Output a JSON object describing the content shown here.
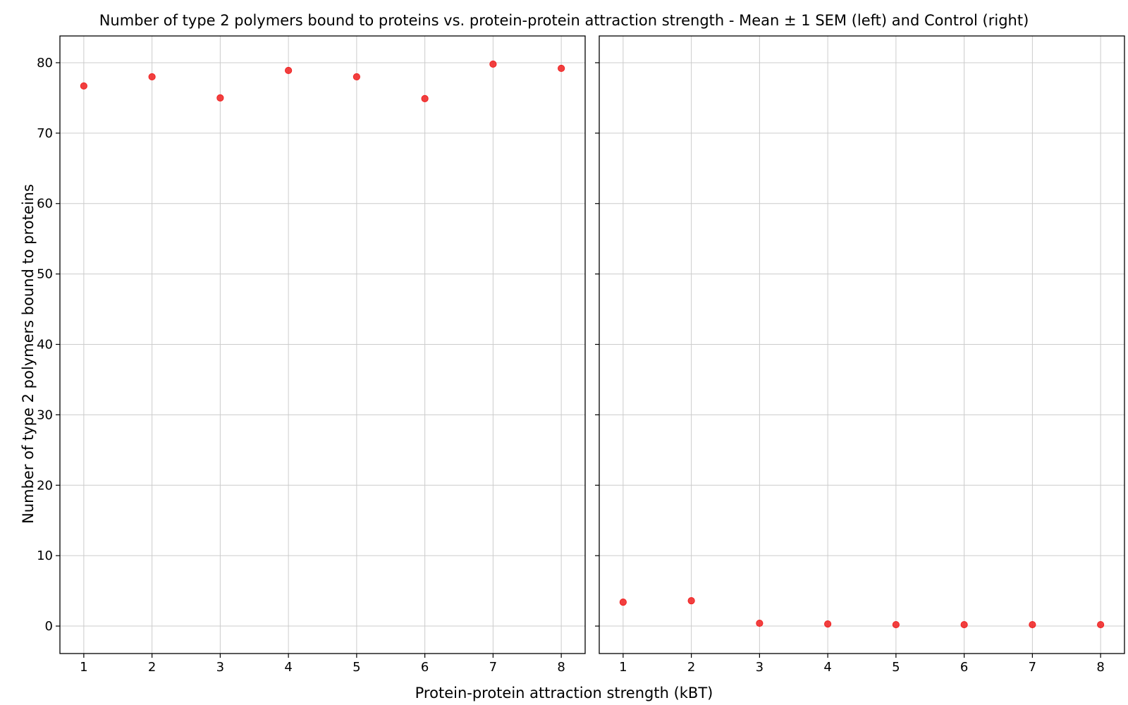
{
  "chart_data": {
    "type": "scatter",
    "title": "Number of type 2 polymers bound to proteins vs. protein-protein attraction strength - Mean ± 1 SEM (left) and Control (right)",
    "xlabel": "Protein-protein attraction strength (kBT)",
    "ylabel": "Number of type 2 polymers bound to proteins",
    "xlim": [
      0.65,
      8.35
    ],
    "ylim": [
      -3.9,
      83.8
    ],
    "x_ticks": [
      "1",
      "2",
      "3",
      "4",
      "5",
      "6",
      "7",
      "8"
    ],
    "y_ticks": [
      "0",
      "10",
      "20",
      "30",
      "40",
      "50",
      "60",
      "70",
      "80"
    ],
    "grid": true,
    "sharey": true,
    "marker_color": "#f02020",
    "panels": [
      {
        "series": [
          {
            "x": [
              1,
              2,
              3,
              4,
              5,
              6,
              7,
              8
            ],
            "y": [
              76.7,
              78.0,
              75.0,
              78.9,
              78.0,
              74.9,
              79.8,
              79.2
            ]
          }
        ]
      },
      {
        "series": [
          {
            "x": [
              1,
              2,
              3,
              4,
              5,
              6,
              7,
              8
            ],
            "y": [
              3.4,
              3.6,
              0.4,
              0.3,
              0.2,
              0.2,
              0.2,
              0.2
            ]
          }
        ]
      }
    ]
  }
}
